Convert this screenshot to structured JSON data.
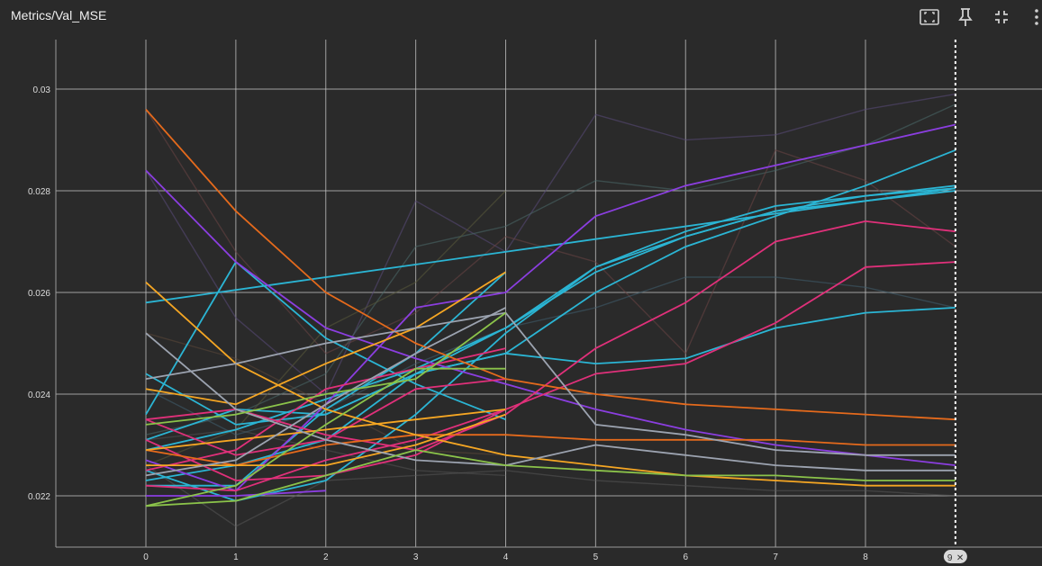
{
  "header": {
    "title": "Metrics/Val_MSE"
  },
  "toolbar": {
    "buttons": [
      {
        "name": "fit-domain-icon"
      },
      {
        "name": "pin-icon"
      },
      {
        "name": "collapse-icon"
      },
      {
        "name": "more-vert-icon"
      }
    ]
  },
  "cursor": {
    "step_label": "9",
    "close_glyph": "✕"
  },
  "chart_data": {
    "type": "line",
    "title": "Metrics/Val_MSE",
    "xlabel": "",
    "ylabel": "",
    "x_ticks": [
      0,
      1,
      2,
      3,
      4,
      5,
      6,
      7,
      8
    ],
    "y_ticks": [
      0.022,
      0.024,
      0.026,
      0.028,
      0.03
    ],
    "y_tick_labels": [
      "0.022",
      "0.024",
      "0.026",
      "0.028",
      "0.03"
    ],
    "xlim": [
      -1,
      10
    ],
    "ylim": [
      0.021,
      0.031
    ],
    "grid": true,
    "cursor_step": 9,
    "series": [
      {
        "color": "#2bb5d4",
        "opacity": 1,
        "x": [
          0,
          9
        ],
        "y": [
          0.0258,
          0.02805
        ]
      },
      {
        "color": "#2bb5d4",
        "opacity": 1,
        "x": [
          0,
          1,
          2,
          3,
          4,
          5,
          6,
          7,
          8,
          9
        ],
        "y": [
          0.0244,
          0.0234,
          0.0236,
          0.0244,
          0.0248,
          0.026,
          0.0269,
          0.0275,
          0.0281,
          0.0288
        ]
      },
      {
        "color": "#2bb5d4",
        "opacity": 1,
        "x": [
          0,
          1,
          2,
          3,
          4,
          5,
          6,
          7,
          8,
          9
        ],
        "y": [
          0.0225,
          0.0219,
          0.0223,
          0.0236,
          0.0252,
          0.0265,
          0.0271,
          0.0276,
          0.0279,
          0.0281
        ]
      },
      {
        "color": "#2bb5d4",
        "opacity": 1,
        "x": [
          0,
          1,
          2,
          3,
          4,
          5,
          6,
          7,
          8,
          9
        ],
        "y": [
          0.0223,
          0.0226,
          0.0231,
          0.0244,
          0.0253,
          0.0265,
          0.0272,
          0.0277,
          0.0279,
          0.02805
        ]
      },
      {
        "color": "#2bb5d4",
        "opacity": 1,
        "x": [
          0,
          1,
          2,
          3,
          4,
          5,
          6,
          7,
          8,
          9
        ],
        "y": [
          0.0229,
          0.0233,
          0.0239,
          0.0245,
          0.0253,
          0.0264,
          0.0271,
          0.0276,
          0.0278,
          0.028
        ]
      },
      {
        "color": "#2bb5d4",
        "opacity": 1,
        "x": [
          0,
          1,
          2,
          3,
          4,
          5,
          6,
          7,
          8,
          9
        ],
        "y": [
          0.0231,
          0.0237,
          0.0236,
          0.0244,
          0.0248,
          0.0246,
          0.0247,
          0.0253,
          0.0256,
          0.0257
        ]
      },
      {
        "color": "#2bb5d4",
        "opacity": 1,
        "x": [
          0,
          1,
          2,
          3,
          4
        ],
        "y": [
          0.0236,
          0.0266,
          0.0251,
          0.0242,
          0.0235
        ]
      },
      {
        "color": "#2bb5d4",
        "opacity": 1,
        "x": [
          0,
          1,
          2,
          3,
          4
        ],
        "y": [
          0.0222,
          0.0222,
          0.0237,
          0.0248,
          0.0264
        ]
      },
      {
        "color": "#8b3ee0",
        "opacity": 1,
        "x": [
          0,
          1,
          2,
          3,
          4,
          5,
          6,
          7,
          8,
          9
        ],
        "y": [
          0.0227,
          0.0221,
          0.0238,
          0.0257,
          0.026,
          0.0275,
          0.0281,
          0.0285,
          0.0289,
          0.0293
        ]
      },
      {
        "color": "#8b3ee0",
        "opacity": 1,
        "x": [
          0,
          1,
          2,
          3,
          4,
          5,
          6,
          7,
          8,
          9
        ],
        "y": [
          0.0284,
          0.0266,
          0.0253,
          0.0247,
          0.0242,
          0.0237,
          0.0233,
          0.023,
          0.0228,
          0.0226
        ]
      },
      {
        "color": "#8b3ee0",
        "opacity": 1,
        "x": [
          0,
          1,
          2
        ],
        "y": [
          0.022,
          0.022,
          0.0221
        ]
      },
      {
        "color": "#e0307a",
        "opacity": 1,
        "x": [
          0,
          1,
          2,
          3,
          4,
          5,
          6,
          7,
          8,
          9
        ],
        "y": [
          0.0235,
          0.0237,
          0.0232,
          0.0229,
          0.0236,
          0.0249,
          0.0258,
          0.027,
          0.0274,
          0.0272
        ]
      },
      {
        "color": "#e0307a",
        "opacity": 1,
        "x": [
          0,
          1,
          2,
          3,
          4,
          5,
          6,
          7,
          8,
          9
        ],
        "y": [
          0.0231,
          0.0223,
          0.0224,
          0.0228,
          0.0237,
          0.0244,
          0.0246,
          0.0254,
          0.0265,
          0.0266
        ]
      },
      {
        "color": "#e0307a",
        "opacity": 1,
        "x": [
          0,
          1,
          2,
          3,
          4
        ],
        "y": [
          0.0225,
          0.0229,
          0.0241,
          0.0245,
          0.0249
        ]
      },
      {
        "color": "#e0307a",
        "opacity": 1,
        "x": [
          0,
          1,
          2,
          3,
          4
        ],
        "y": [
          0.0235,
          0.0228,
          0.0231,
          0.0241,
          0.0243
        ]
      },
      {
        "color": "#e0307a",
        "opacity": 1,
        "x": [
          0,
          1,
          2,
          3,
          4
        ],
        "y": [
          0.0222,
          0.0221,
          0.0227,
          0.0231,
          0.0237
        ]
      },
      {
        "color": "#e56a1c",
        "opacity": 1,
        "x": [
          0,
          1,
          2,
          3,
          4,
          5,
          6,
          7,
          8,
          9
        ],
        "y": [
          0.0296,
          0.0276,
          0.026,
          0.025,
          0.0243,
          0.024,
          0.0238,
          0.0237,
          0.0236,
          0.0235
        ]
      },
      {
        "color": "#e56a1c",
        "opacity": 1,
        "x": [
          0,
          1,
          2,
          3,
          4,
          5,
          6,
          7,
          8,
          9
        ],
        "y": [
          0.0229,
          0.0226,
          0.023,
          0.0232,
          0.0232,
          0.0231,
          0.0231,
          0.0231,
          0.023,
          0.023
        ]
      },
      {
        "color": "#f5a623",
        "opacity": 1,
        "x": [
          0,
          1,
          2,
          3,
          4,
          5,
          6,
          7,
          8,
          9
        ],
        "y": [
          0.0262,
          0.0246,
          0.0237,
          0.0232,
          0.0228,
          0.0226,
          0.0224,
          0.0223,
          0.0222,
          0.0222
        ]
      },
      {
        "color": "#f5a623",
        "opacity": 1,
        "x": [
          0,
          1,
          2,
          3,
          4
        ],
        "y": [
          0.0241,
          0.0238,
          0.0246,
          0.0253,
          0.0264
        ]
      },
      {
        "color": "#f5a623",
        "opacity": 1,
        "x": [
          0,
          1,
          2,
          3,
          4
        ],
        "y": [
          0.0229,
          0.0231,
          0.0233,
          0.0235,
          0.0237
        ]
      },
      {
        "color": "#f5a623",
        "opacity": 1,
        "x": [
          0,
          1,
          2,
          3,
          4
        ],
        "y": [
          0.0226,
          0.0226,
          0.0226,
          0.023,
          0.0236
        ]
      },
      {
        "color": "#9ca3b0",
        "opacity": 1,
        "x": [
          0,
          1,
          2,
          3,
          4,
          5,
          6,
          7,
          8,
          9
        ],
        "y": [
          0.0243,
          0.0246,
          0.025,
          0.0253,
          0.0256,
          0.0234,
          0.0232,
          0.0229,
          0.0228,
          0.0228
        ]
      },
      {
        "color": "#9ca3b0",
        "opacity": 1,
        "x": [
          0,
          1,
          2,
          3,
          4,
          5,
          6,
          7,
          8,
          9
        ],
        "y": [
          0.0252,
          0.0237,
          0.0231,
          0.0227,
          0.0226,
          0.023,
          0.0228,
          0.0226,
          0.0225,
          0.0225
        ]
      },
      {
        "color": "#9ca3b0",
        "opacity": 1,
        "x": [
          0,
          1,
          2,
          3,
          4
        ],
        "y": [
          0.0224,
          0.0227,
          0.0238,
          0.0248,
          0.0257
        ]
      },
      {
        "color": "#8bc34a",
        "opacity": 1,
        "x": [
          0,
          1,
          2,
          3,
          4,
          5,
          6,
          7,
          8,
          9
        ],
        "y": [
          0.0218,
          0.0219,
          0.0224,
          0.0229,
          0.0226,
          0.0225,
          0.0224,
          0.0224,
          0.0223,
          0.0223
        ]
      },
      {
        "color": "#8bc34a",
        "opacity": 1,
        "x": [
          0,
          1,
          2,
          3,
          4
        ],
        "y": [
          0.0218,
          0.0222,
          0.0234,
          0.0245,
          0.0245
        ]
      },
      {
        "color": "#8bc34a",
        "opacity": 1,
        "x": [
          0,
          1,
          2,
          3,
          4
        ],
        "y": [
          0.0234,
          0.0236,
          0.024,
          0.0243,
          0.0256
        ]
      },
      {
        "color": "#5a4a7a",
        "opacity": 0.55,
        "x": [
          0,
          1,
          2,
          3,
          4,
          5,
          6,
          7,
          8,
          9
        ],
        "y": [
          0.0284,
          0.0255,
          0.024,
          0.0278,
          0.0268,
          0.0295,
          0.029,
          0.0291,
          0.0296,
          0.0299
        ]
      },
      {
        "color": "#4a6a6a",
        "opacity": 0.55,
        "x": [
          0,
          1,
          2,
          3,
          4,
          5,
          6,
          7,
          8,
          9
        ],
        "y": [
          0.0232,
          0.0236,
          0.0244,
          0.0269,
          0.0273,
          0.0282,
          0.028,
          0.0284,
          0.0289,
          0.0297
        ]
      },
      {
        "color": "#6a4444",
        "opacity": 0.55,
        "x": [
          0,
          1,
          2,
          3,
          4,
          5,
          6,
          7,
          8,
          9
        ],
        "y": [
          0.0296,
          0.0268,
          0.0248,
          0.0256,
          0.0271,
          0.0266,
          0.0248,
          0.0288,
          0.0282,
          0.0269
        ]
      },
      {
        "color": "#5a5a3a",
        "opacity": 0.55,
        "x": [
          0,
          1,
          2,
          3,
          4
        ],
        "y": [
          0.0226,
          0.0233,
          0.0253,
          0.0262,
          0.028
        ]
      },
      {
        "color": "#3f5f6f",
        "opacity": 0.55,
        "x": [
          0,
          1,
          2,
          3,
          4,
          5,
          6,
          7,
          8,
          9
        ],
        "y": [
          0.0241,
          0.0232,
          0.0237,
          0.0246,
          0.0253,
          0.0257,
          0.0263,
          0.0263,
          0.0261,
          0.0257
        ]
      },
      {
        "color": "#5a5a5a",
        "opacity": 0.5,
        "x": [
          0,
          1,
          2,
          3,
          4,
          5,
          6,
          7,
          8,
          9
        ],
        "y": [
          0.0226,
          0.0214,
          0.0223,
          0.0224,
          0.0225,
          0.0223,
          0.0222,
          0.0221,
          0.0221,
          0.022
        ]
      },
      {
        "color": "#555555",
        "opacity": 0.5,
        "x": [
          0,
          1,
          2,
          3,
          4
        ],
        "y": [
          0.0231,
          0.0233,
          0.0229,
          0.0225,
          0.0224
        ]
      },
      {
        "color": "#604a3a",
        "opacity": 0.5,
        "x": [
          0,
          1,
          2,
          3,
          4
        ],
        "y": [
          0.0252,
          0.0247,
          0.0238,
          0.0229,
          0.0228
        ]
      }
    ]
  }
}
